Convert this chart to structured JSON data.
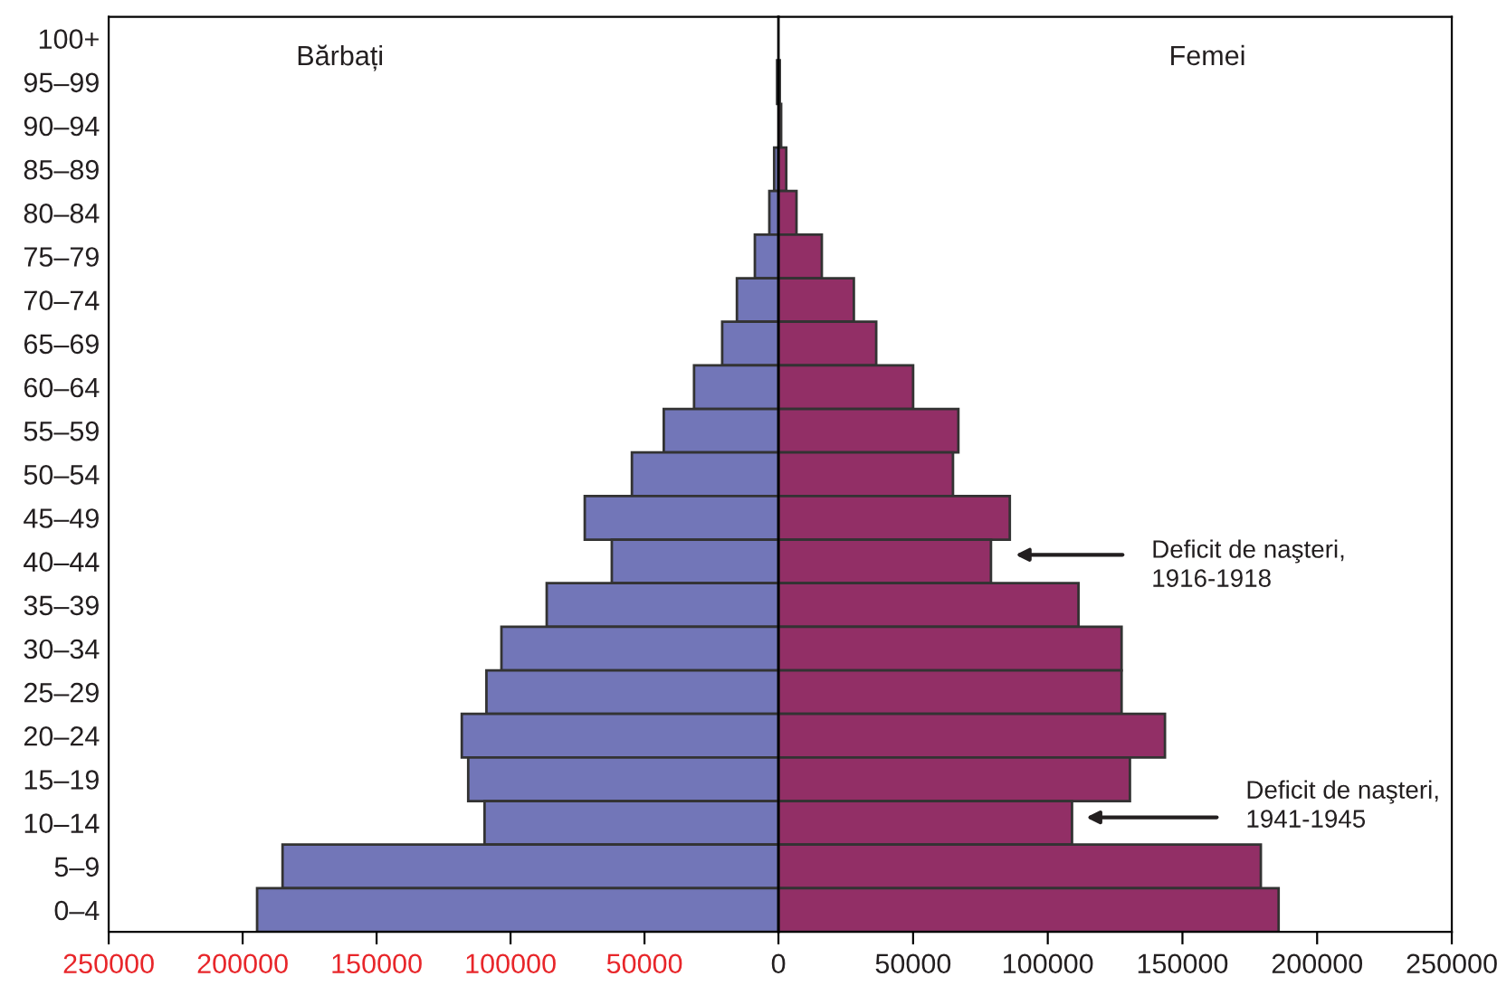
{
  "chart_data": [
    {
      "type": "bar",
      "orientation": "horizontal",
      "categories": [
        "100+",
        "95–99",
        "90–94",
        "85–89",
        "80–84",
        "75–79",
        "70–74",
        "65–69",
        "60–64",
        "55–59",
        "50–54",
        "45–49",
        "40–44",
        "35–39",
        "30–34",
        "25–29",
        "20–24",
        "15–19",
        "10–14",
        "5–9",
        "0–4"
      ],
      "series": [
        {
          "name": "Bărbați",
          "color": "#7276b8",
          "values": [
            null,
            500,
            null,
            1600,
            3400,
            8800,
            15500,
            21000,
            31500,
            42800,
            54700,
            72300,
            62200,
            86500,
            103400,
            109000,
            118200,
            115800,
            109700,
            185100,
            194600
          ]
        }
      ],
      "xlim": [
        250000,
        0
      ],
      "xticks": [
        250000,
        200000,
        150000,
        100000,
        50000
      ],
      "grid": false,
      "legend": false
    },
    {
      "type": "bar",
      "orientation": "horizontal",
      "categories": [
        null,
        null,
        null,
        null,
        null,
        null,
        null,
        null,
        null,
        null,
        null,
        null,
        null,
        null,
        null,
        null,
        null,
        null,
        null,
        null,
        null
      ],
      "series": [
        {
          "name": "Femei",
          "color": "#922f66",
          "values": [
            null,
            500,
            1000,
            2900,
            6700,
            16100,
            28000,
            36300,
            50000,
            66800,
            64800,
            85900,
            78900,
            111400,
            127400,
            127400,
            143500,
            130500,
            109000,
            179100,
            185700
          ]
        }
      ],
      "xlim": [
        0,
        250000
      ],
      "xticks": [
        0,
        50000,
        100000,
        150000,
        200000,
        250000
      ],
      "tick_labels": "x",
      "annotations": [
        "Deficit de naşteri,\n1916-1918",
        "Deficit de naşteri,\n1941-1945"
      ],
      "grid": false,
      "legend": false
    }
  ]
}
